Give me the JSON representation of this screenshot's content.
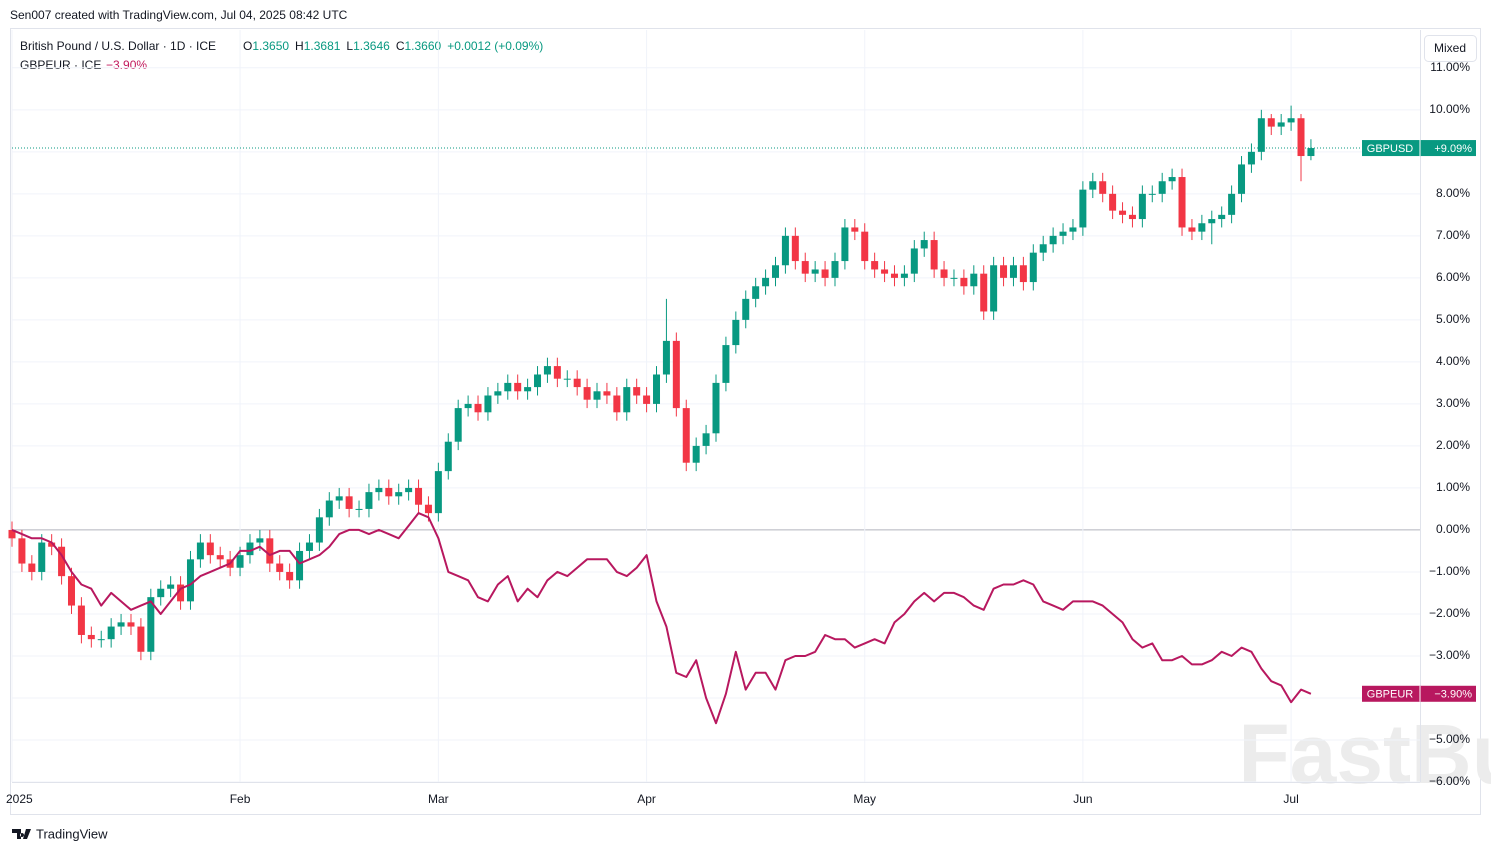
{
  "header": {
    "credit": "Sen007 created with TradingView.com, Jul 04, 2025 08:42 UTC",
    "mode_button": "Mixed",
    "footer_brand": "TradingView",
    "watermark": "FastBull"
  },
  "chart_data": {
    "type": "candlestick",
    "legend": {
      "symbol": "British Pound / U.S. Dollar · 1D · ICE",
      "ohlc": [
        [
          "O",
          "1.3650"
        ],
        [
          "H",
          "1.3681"
        ],
        [
          "L",
          "1.3646"
        ],
        [
          "C",
          "1.3660"
        ]
      ],
      "change": "+0.0012 (+0.09%)",
      "compare_symbol": "GBPEUR · ICE",
      "compare_change": "−3.90%"
    },
    "xlim": [
      0,
      142
    ],
    "xticks": [
      {
        "value": 0,
        "label": "2025"
      },
      {
        "value": 23,
        "label": "Feb"
      },
      {
        "value": 43,
        "label": "Mar"
      },
      {
        "value": 64,
        "label": "Apr"
      },
      {
        "value": 86,
        "label": "May"
      },
      {
        "value": 108,
        "label": "Jun"
      },
      {
        "value": 129,
        "label": "Jul"
      }
    ],
    "ylim": [
      -6,
      11.9
    ],
    "yticks": [
      {
        "value": -6,
        "label": "−6.00%"
      },
      {
        "value": -5,
        "label": "−5.00%"
      },
      {
        "value": -4,
        "label": "−4.00%"
      },
      {
        "value": -3,
        "label": "−3.00%"
      },
      {
        "value": -2,
        "label": "−2.00%"
      },
      {
        "value": -1,
        "label": "−1.00%"
      },
      {
        "value": 0,
        "label": "0.00%"
      },
      {
        "value": 1,
        "label": "1.00%"
      },
      {
        "value": 2,
        "label": "2.00%"
      },
      {
        "value": 3,
        "label": "3.00%"
      },
      {
        "value": 4,
        "label": "4.00%"
      },
      {
        "value": 5,
        "label": "5.00%"
      },
      {
        "value": 6,
        "label": "6.00%"
      },
      {
        "value": 7,
        "label": "7.00%"
      },
      {
        "value": 8,
        "label": "8.00%"
      },
      {
        "value": 9,
        "label": "9.00%"
      },
      {
        "value": 10,
        "label": "10.00%"
      },
      {
        "value": 11,
        "label": "11.00%"
      }
    ],
    "grid": true,
    "series": [
      {
        "name": "GBPUSD",
        "type": "candlestick",
        "up_color": "#089981",
        "down_color": "#f23645",
        "last_value": {
          "value": 9.09,
          "label": "+9.09%"
        },
        "open": [
          0,
          -0.2,
          -0.8,
          -1.0,
          -0.3,
          -0.4,
          -1.1,
          -1.8,
          -2.5,
          -2.6,
          -2.6,
          -2.3,
          -2.2,
          -2.3,
          -2.9,
          -1.6,
          -1.4,
          -1.3,
          -1.7,
          -0.7,
          -0.3,
          -0.6,
          -0.7,
          -0.9,
          -0.6,
          -0.3,
          -0.2,
          -0.8,
          -1.0,
          -1.2,
          -0.5,
          -0.3,
          0.3,
          0.7,
          0.8,
          0.5,
          0.5,
          0.9,
          1.0,
          0.8,
          0.9,
          1.0,
          0.6,
          0.4,
          1.4,
          2.1,
          2.9,
          3.0,
          2.8,
          3.2,
          3.3,
          3.5,
          3.3,
          3.4,
          3.7,
          3.9,
          3.6,
          3.6,
          3.4,
          3.1,
          3.3,
          3.2,
          2.8,
          3.4,
          3.2,
          3.0,
          3.7,
          4.5,
          2.9,
          1.6,
          2.0,
          2.3,
          3.5,
          4.4,
          5.0,
          5.5,
          5.8,
          6.0,
          6.3,
          7.0,
          6.4,
          6.1,
          6.2,
          6.0,
          6.4,
          7.2,
          7.1,
          6.4,
          6.2,
          6.1,
          6.0,
          6.1,
          6.7,
          6.9,
          6.2,
          6.0,
          6.0,
          5.8,
          6.1,
          5.2,
          6.3,
          6.0,
          6.3,
          5.9,
          6.6,
          6.8,
          7.0,
          7.1,
          7.2,
          8.1,
          8.3,
          8.0,
          7.6,
          7.5,
          7.4,
          8.0,
          8.0,
          8.3,
          8.4,
          7.2,
          7.1,
          7.3,
          7.4,
          7.5,
          8.0,
          8.7,
          9.0,
          9.8,
          9.6,
          9.7,
          9.8,
          8.9
        ],
        "high": [
          0.2,
          0.0,
          -0.6,
          -0.1,
          -0.1,
          -0.2,
          -0.9,
          -1.6,
          -2.3,
          -2.4,
          -2.1,
          -2.0,
          -2.0,
          -2.1,
          -1.4,
          -1.2,
          -1.1,
          -1.1,
          -0.5,
          -0.1,
          -0.1,
          -0.4,
          -0.5,
          -0.4,
          -0.1,
          0.0,
          0.0,
          -0.6,
          -0.8,
          -0.3,
          -0.1,
          0.5,
          0.9,
          1.0,
          1.0,
          0.7,
          1.1,
          1.2,
          1.2,
          1.1,
          1.2,
          1.2,
          0.8,
          1.6,
          2.3,
          3.1,
          3.2,
          3.2,
          3.4,
          3.5,
          3.7,
          3.7,
          3.6,
          3.9,
          4.1,
          4.1,
          3.8,
          3.8,
          3.6,
          3.5,
          3.5,
          3.4,
          3.6,
          3.6,
          3.4,
          3.9,
          5.5,
          4.7,
          3.1,
          2.2,
          2.5,
          3.7,
          4.6,
          5.2,
          5.7,
          6.0,
          6.2,
          6.5,
          7.2,
          7.2,
          6.6,
          6.4,
          6.4,
          6.6,
          7.4,
          7.4,
          7.3,
          6.6,
          6.4,
          6.3,
          6.3,
          6.9,
          7.1,
          7.1,
          6.4,
          6.2,
          6.2,
          6.3,
          6.3,
          6.5,
          6.5,
          6.5,
          6.5,
          6.8,
          7.0,
          7.2,
          7.3,
          7.4,
          8.3,
          8.5,
          8.5,
          8.2,
          7.8,
          7.7,
          8.2,
          8.2,
          8.5,
          8.6,
          8.6,
          7.4,
          7.5,
          7.6,
          7.7,
          8.2,
          8.9,
          9.2,
          10.0,
          9.9,
          9.9,
          10.1,
          9.9,
          9.3
        ],
        "low": [
          -0.4,
          -1.0,
          -1.2,
          -1.2,
          -0.6,
          -1.3,
          -2.0,
          -2.7,
          -2.8,
          -2.8,
          -2.8,
          -2.5,
          -2.5,
          -3.1,
          -3.1,
          -1.8,
          -1.6,
          -1.9,
          -1.9,
          -0.9,
          -0.8,
          -0.9,
          -1.1,
          -1.1,
          -0.8,
          -0.5,
          -1.0,
          -1.2,
          -1.4,
          -1.4,
          -0.7,
          -0.5,
          0.1,
          0.5,
          0.3,
          0.3,
          0.3,
          0.7,
          0.6,
          0.6,
          0.7,
          0.4,
          0.2,
          0.2,
          1.2,
          1.9,
          2.7,
          2.6,
          2.6,
          3.0,
          3.1,
          3.1,
          3.1,
          3.2,
          3.5,
          3.4,
          3.4,
          3.2,
          2.9,
          2.9,
          3.0,
          2.6,
          2.6,
          3.0,
          2.8,
          2.8,
          3.5,
          2.7,
          1.4,
          1.4,
          1.8,
          2.1,
          3.3,
          4.2,
          4.8,
          5.3,
          5.6,
          5.8,
          6.1,
          6.2,
          5.9,
          5.9,
          5.8,
          5.8,
          6.2,
          6.9,
          6.2,
          6.0,
          5.9,
          5.8,
          5.8,
          5.9,
          6.5,
          6.0,
          5.8,
          5.8,
          5.6,
          5.6,
          5.0,
          5.0,
          5.8,
          5.8,
          5.7,
          5.7,
          6.4,
          6.6,
          6.8,
          6.9,
          7.0,
          7.9,
          7.8,
          7.4,
          7.3,
          7.2,
          7.2,
          7.8,
          7.8,
          8.1,
          7.0,
          6.9,
          6.9,
          6.8,
          7.2,
          7.3,
          7.8,
          8.5,
          8.8,
          9.4,
          9.4,
          9.5,
          8.3,
          8.8
        ],
        "close": [
          -0.2,
          -0.8,
          -1.0,
          -0.3,
          -0.4,
          -1.1,
          -1.8,
          -2.5,
          -2.6,
          -2.6,
          -2.3,
          -2.2,
          -2.3,
          -2.9,
          -1.6,
          -1.4,
          -1.3,
          -1.7,
          -0.7,
          -0.3,
          -0.6,
          -0.7,
          -0.9,
          -0.6,
          -0.3,
          -0.2,
          -0.8,
          -1.0,
          -1.2,
          -0.5,
          -0.3,
          0.3,
          0.7,
          0.8,
          0.5,
          0.5,
          0.9,
          1.0,
          0.8,
          0.9,
          1.0,
          0.6,
          0.4,
          1.4,
          2.1,
          2.9,
          3.0,
          2.8,
          3.2,
          3.3,
          3.5,
          3.3,
          3.4,
          3.7,
          3.9,
          3.6,
          3.6,
          3.4,
          3.1,
          3.3,
          3.2,
          2.8,
          3.4,
          3.2,
          3.0,
          3.7,
          4.5,
          2.9,
          1.6,
          2.0,
          2.3,
          3.5,
          4.4,
          5.0,
          5.5,
          5.8,
          6.0,
          6.3,
          7.0,
          6.4,
          6.1,
          6.2,
          6.0,
          6.4,
          7.2,
          7.1,
          6.4,
          6.2,
          6.1,
          6.0,
          6.1,
          6.7,
          6.9,
          6.2,
          6.0,
          6.0,
          5.8,
          6.1,
          5.2,
          6.3,
          6.0,
          6.3,
          5.9,
          6.6,
          6.8,
          7.0,
          7.1,
          7.2,
          8.1,
          8.3,
          8.0,
          7.6,
          7.5,
          7.4,
          8.0,
          8.0,
          8.3,
          8.4,
          7.2,
          7.1,
          7.3,
          7.4,
          7.5,
          8.0,
          8.7,
          9.0,
          9.8,
          9.6,
          9.7,
          9.8,
          8.9,
          9.09
        ]
      },
      {
        "name": "GBPEUR",
        "type": "line",
        "color": "#b8185f",
        "last_value": {
          "value": -3.9,
          "label": "−3.90%"
        },
        "values": [
          0,
          -0.1,
          -0.2,
          -0.2,
          -0.3,
          -0.6,
          -1.0,
          -1.3,
          -1.4,
          -1.8,
          -1.5,
          -1.7,
          -1.9,
          -1.8,
          -1.7,
          -2.0,
          -1.7,
          -1.4,
          -1.3,
          -1.1,
          -1.0,
          -0.9,
          -0.8,
          -0.5,
          -0.5,
          -0.4,
          -0.6,
          -0.5,
          -0.5,
          -0.8,
          -0.7,
          -0.6,
          -0.4,
          -0.1,
          0.0,
          0.0,
          -0.1,
          0.0,
          -0.1,
          -0.2,
          0.1,
          0.4,
          0.3,
          -0.2,
          -1.0,
          -1.1,
          -1.2,
          -1.6,
          -1.7,
          -1.3,
          -1.1,
          -1.7,
          -1.4,
          -1.6,
          -1.2,
          -1.0,
          -1.1,
          -0.9,
          -0.7,
          -0.7,
          -0.7,
          -1.0,
          -1.1,
          -0.9,
          -0.6,
          -1.7,
          -2.3,
          -3.4,
          -3.5,
          -3.1,
          -4.0,
          -4.6,
          -3.9,
          -2.9,
          -3.8,
          -3.4,
          -3.4,
          -3.8,
          -3.1,
          -3.0,
          -3.0,
          -2.9,
          -2.5,
          -2.6,
          -2.6,
          -2.8,
          -2.7,
          -2.6,
          -2.7,
          -2.2,
          -2.0,
          -1.7,
          -1.5,
          -1.7,
          -1.5,
          -1.5,
          -1.6,
          -1.8,
          -1.9,
          -1.4,
          -1.3,
          -1.3,
          -1.2,
          -1.3,
          -1.7,
          -1.8,
          -1.9,
          -1.7,
          -1.7,
          -1.7,
          -1.8,
          -2.0,
          -2.2,
          -2.6,
          -2.8,
          -2.7,
          -3.1,
          -3.1,
          -3.0,
          -3.2,
          -3.2,
          -3.1,
          -2.9,
          -3.0,
          -2.8,
          -2.9,
          -3.3,
          -3.6,
          -3.7,
          -4.1,
          -3.8,
          -3.9
        ]
      }
    ]
  }
}
